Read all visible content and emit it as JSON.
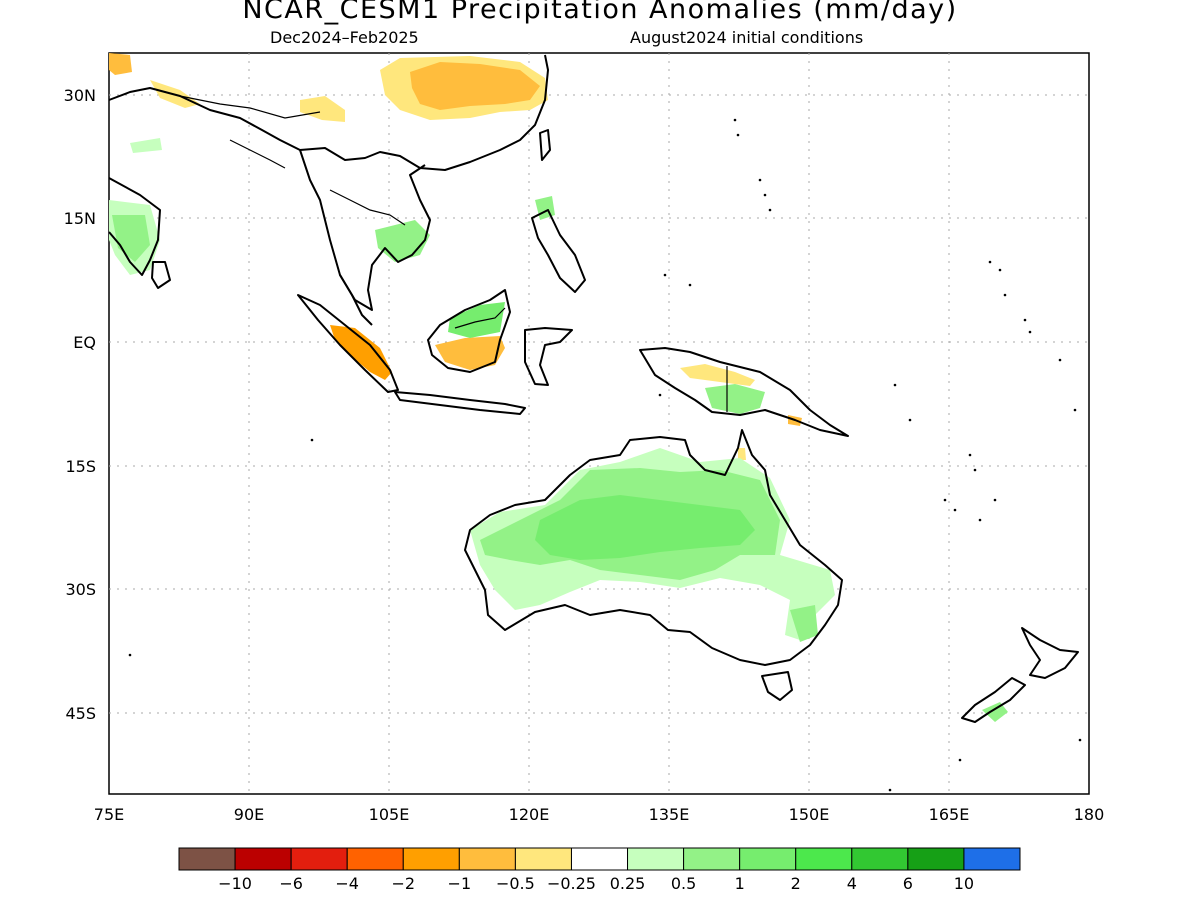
{
  "title": "NCAR_CESM1 Precipitation Anomalies (mm/day)",
  "subtitle_left": "Dec2024–Feb2025",
  "subtitle_right": "August2024 initial conditions",
  "map": {
    "lon_range": [
      75,
      180
    ],
    "lat_range": [
      -56,
      35
    ],
    "lon_ticks": [
      "75E",
      "90E",
      "105E",
      "120E",
      "135E",
      "150E",
      "165E",
      "180"
    ],
    "lat_ticks": [
      "30N",
      "15N",
      "EQ",
      "15S",
      "30S",
      "45S"
    ]
  },
  "colorbar": {
    "colors": [
      "#7d5245",
      "#bb0000",
      "#e31e0e",
      "#ff6200",
      "#ff9f00",
      "#ffbd3d",
      "#ffe77d",
      "#ffffff",
      "#c6ffbe",
      "#93f287",
      "#76ed6e",
      "#4ce84c",
      "#32c832",
      "#16a016",
      "#1e6fe8"
    ],
    "labels": [
      "−10",
      "−6",
      "−4",
      "−2",
      "−1",
      "−0.5",
      "−0.25",
      "0.25",
      "0.5",
      "1",
      "2",
      "4",
      "6",
      "10"
    ]
  }
}
